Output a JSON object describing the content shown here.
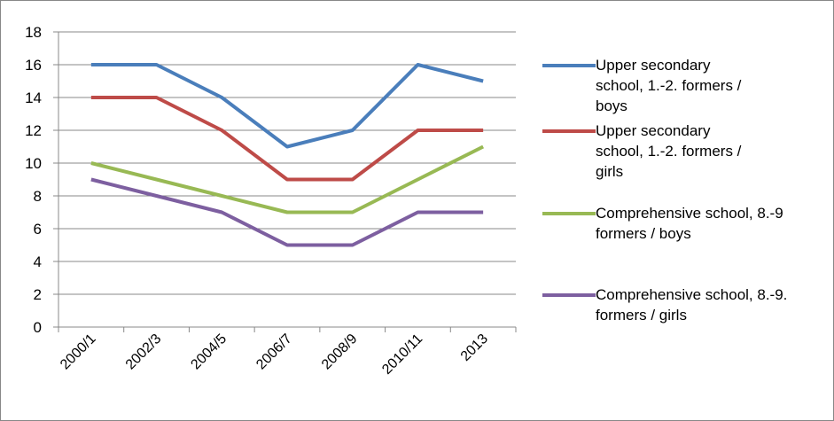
{
  "chart_data": {
    "type": "line",
    "categories": [
      "2000/1",
      "2002/3",
      "2004/5",
      "2006/7",
      "2008/9",
      "2010/11",
      "2013"
    ],
    "series": [
      {
        "name": "Upper secondary school, 1.-2. formers / boys",
        "color": "#4a7ebb",
        "values": [
          16,
          16,
          14,
          11,
          12,
          16,
          15
        ]
      },
      {
        "name": "Upper secondary school, 1.-2. formers / girls",
        "color": "#be4b48",
        "values": [
          14,
          14,
          12,
          9,
          9,
          12,
          12
        ]
      },
      {
        "name": "Comprehensive school, 8.-9 formers / boys",
        "color": "#98b954",
        "values": [
          10,
          9,
          8,
          7,
          7,
          9,
          11
        ]
      },
      {
        "name": "Comprehensive school, 8.-9. formers / girls",
        "color": "#7d5fa0",
        "values": [
          9,
          8,
          7,
          5,
          5,
          7,
          7
        ]
      }
    ],
    "ylim": [
      0,
      18
    ],
    "yticks": [
      0,
      2,
      4,
      6,
      8,
      10,
      12,
      14,
      16,
      18
    ],
    "grid": true,
    "legend": "right"
  }
}
